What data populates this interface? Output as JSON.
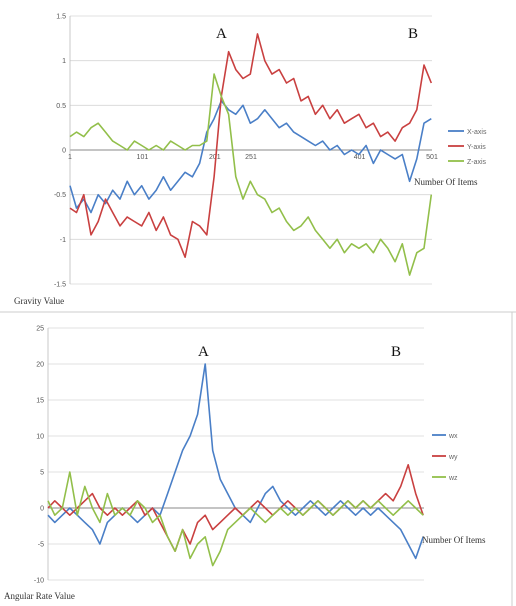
{
  "chart_data": [
    {
      "type": "line",
      "ylabel": "Gravity Value",
      "xlabel": "Number Of Items",
      "ylim": [
        -1.5,
        1.5
      ],
      "yticks": [
        "1.5",
        "1",
        "0.5",
        "0",
        "-0.5",
        "-1",
        "-1.5"
      ],
      "xlim": [
        1,
        501
      ],
      "xticks": [
        {
          "v": 1,
          "label": "1"
        },
        {
          "v": 101,
          "label": "101"
        },
        {
          "v": 201,
          "label": "201"
        },
        {
          "v": 251,
          "label": "251"
        },
        {
          "v": 401,
          "label": "401"
        },
        {
          "v": 501,
          "label": "501"
        }
      ],
      "grid": "horizontal",
      "legend": "right",
      "annotations": [
        {
          "text": "A",
          "x": 200
        },
        {
          "text": "B",
          "x": 480
        }
      ],
      "x": [
        1,
        10,
        20,
        30,
        40,
        50,
        60,
        70,
        80,
        90,
        100,
        110,
        120,
        130,
        140,
        150,
        160,
        170,
        180,
        190,
        200,
        210,
        220,
        230,
        240,
        250,
        260,
        270,
        280,
        290,
        300,
        310,
        320,
        330,
        340,
        350,
        360,
        370,
        380,
        390,
        400,
        410,
        420,
        430,
        440,
        450,
        460,
        470,
        480,
        490,
        500
      ],
      "series": [
        {
          "name": "X-axis",
          "color": "#4a7fc7",
          "values": [
            -0.4,
            -0.65,
            -0.55,
            -0.7,
            -0.5,
            -0.6,
            -0.45,
            -0.55,
            -0.35,
            -0.5,
            -0.4,
            -0.55,
            -0.45,
            -0.3,
            -0.45,
            -0.35,
            -0.25,
            -0.3,
            -0.15,
            0.2,
            0.35,
            0.55,
            0.45,
            0.4,
            0.5,
            0.3,
            0.35,
            0.45,
            0.35,
            0.25,
            0.3,
            0.2,
            0.15,
            0.1,
            0.05,
            0.1,
            0.0,
            0.05,
            -0.05,
            0.0,
            -0.05,
            0.05,
            -0.15,
            0.0,
            -0.05,
            -0.1,
            -0.05,
            -0.35,
            -0.1,
            0.3,
            0.35
          ]
        },
        {
          "name": "Y-axis",
          "color": "#c94040",
          "values": [
            -0.65,
            -0.7,
            -0.5,
            -0.95,
            -0.8,
            -0.55,
            -0.7,
            -0.85,
            -0.75,
            -0.8,
            -0.85,
            -0.7,
            -0.9,
            -0.75,
            -0.95,
            -1.0,
            -1.2,
            -0.8,
            -0.85,
            -0.95,
            -0.3,
            0.6,
            1.1,
            0.9,
            0.8,
            0.85,
            1.3,
            1.0,
            0.85,
            0.9,
            0.75,
            0.8,
            0.55,
            0.6,
            0.4,
            0.5,
            0.35,
            0.45,
            0.3,
            0.35,
            0.4,
            0.25,
            0.3,
            0.15,
            0.2,
            0.1,
            0.25,
            0.3,
            0.45,
            0.95,
            0.75
          ]
        },
        {
          "name": "Z-axis",
          "color": "#92bf4a",
          "values": [
            0.15,
            0.2,
            0.15,
            0.25,
            0.3,
            0.2,
            0.1,
            0.05,
            0.0,
            0.1,
            0.05,
            0.0,
            0.05,
            0.0,
            0.1,
            0.05,
            0.0,
            0.05,
            0.05,
            0.1,
            0.85,
            0.6,
            0.4,
            -0.3,
            -0.55,
            -0.35,
            -0.5,
            -0.55,
            -0.7,
            -0.65,
            -0.8,
            -0.9,
            -0.85,
            -0.75,
            -0.9,
            -1.0,
            -1.1,
            -1.0,
            -1.15,
            -1.05,
            -1.1,
            -1.05,
            -1.15,
            -1.0,
            -1.1,
            -1.25,
            -1.05,
            -1.4,
            -1.15,
            -1.1,
            -0.5
          ]
        }
      ]
    },
    {
      "type": "line",
      "ylabel": "Angular Rate Value",
      "xlabel": "Number Of Items",
      "ylim": [
        -10,
        25
      ],
      "yticks": [
        "25",
        "20",
        "15",
        "10",
        "5",
        "0",
        "-5",
        "-10"
      ],
      "xlim": [
        1,
        501
      ],
      "grid": "horizontal",
      "legend": "right",
      "annotations": [
        {
          "text": "A",
          "x": 200
        },
        {
          "text": "B",
          "x": 480
        }
      ],
      "x": [
        1,
        10,
        20,
        30,
        40,
        50,
        60,
        70,
        80,
        90,
        100,
        110,
        120,
        130,
        140,
        150,
        160,
        170,
        180,
        190,
        200,
        210,
        220,
        230,
        240,
        250,
        260,
        270,
        280,
        290,
        300,
        310,
        320,
        330,
        340,
        350,
        360,
        370,
        380,
        390,
        400,
        410,
        420,
        430,
        440,
        450,
        460,
        470,
        480,
        490,
        500
      ],
      "series": [
        {
          "name": "wx",
          "color": "#4a7fc7",
          "values": [
            -1,
            -2,
            -1,
            0,
            -1,
            -2,
            -3,
            -5,
            -2,
            -1,
            0,
            -1,
            -2,
            -1,
            0,
            -1,
            2,
            5,
            8,
            10,
            13,
            20,
            8,
            4,
            2,
            0,
            -1,
            -2,
            0,
            2,
            3,
            1,
            0,
            -1,
            0,
            1,
            0,
            -1,
            0,
            1,
            0,
            -1,
            0,
            -1,
            0,
            -1,
            -2,
            -3,
            -5,
            -7,
            -4
          ]
        },
        {
          "name": "wy",
          "color": "#c94040",
          "values": [
            0,
            1,
            0,
            -1,
            0,
            1,
            2,
            0,
            -1,
            0,
            -1,
            0,
            1,
            -1,
            0,
            -2,
            -4,
            -6,
            -3,
            -5,
            -2,
            -1,
            -3,
            -2,
            -1,
            0,
            -1,
            0,
            1,
            0,
            -1,
            0,
            1,
            0,
            -1,
            0,
            1,
            0,
            -1,
            0,
            1,
            0,
            1,
            0,
            1,
            2,
            1,
            3,
            6,
            2,
            -1
          ]
        },
        {
          "name": "wz",
          "color": "#92bf4a",
          "values": [
            1,
            -1,
            0,
            5,
            -1,
            3,
            0,
            -2,
            2,
            -1,
            0,
            -1,
            1,
            0,
            -2,
            -1,
            -4,
            -6,
            -3,
            -7,
            -5,
            -4,
            -8,
            -6,
            -3,
            -2,
            -1,
            0,
            -1,
            -2,
            -1,
            0,
            -1,
            0,
            -1,
            0,
            1,
            0,
            -1,
            0,
            1,
            0,
            1,
            0,
            1,
            0,
            -1,
            0,
            1,
            0,
            -1
          ]
        }
      ]
    }
  ]
}
